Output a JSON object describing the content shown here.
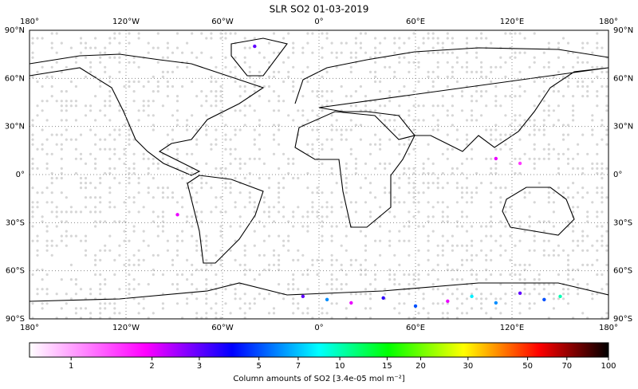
{
  "map": {
    "title": "SLR SO2 01-03-2019",
    "lon_ticks": [
      {
        "value": -180,
        "label": "180°"
      },
      {
        "value": -120,
        "label": "120°W"
      },
      {
        "value": -60,
        "label": "60°W"
      },
      {
        "value": 0,
        "label": "0°"
      },
      {
        "value": 60,
        "label": "60°E"
      },
      {
        "value": 120,
        "label": "120°E"
      },
      {
        "value": 180,
        "label": "180°"
      }
    ],
    "lat_ticks": [
      {
        "value": 90,
        "label": "90°N"
      },
      {
        "value": 60,
        "label": "60°N"
      },
      {
        "value": 30,
        "label": "30°N"
      },
      {
        "value": 0,
        "label": "0°"
      },
      {
        "value": -30,
        "label": "30°S"
      },
      {
        "value": -60,
        "label": "60°S"
      },
      {
        "value": -90,
        "label": "90°S"
      }
    ],
    "grid": true,
    "points": [
      {
        "lon": -40,
        "lat": 80,
        "value": 3
      },
      {
        "lon": -88,
        "lat": -25,
        "value": 2
      },
      {
        "lon": 110,
        "lat": 10,
        "value": 2
      },
      {
        "lon": 125,
        "lat": 7,
        "value": 1.5
      },
      {
        "lon": -10,
        "lat": -76,
        "value": 3
      },
      {
        "lon": 5,
        "lat": -78,
        "value": 6
      },
      {
        "lon": 20,
        "lat": -80,
        "value": 2
      },
      {
        "lon": 40,
        "lat": -77,
        "value": 3.5
      },
      {
        "lon": 60,
        "lat": -82,
        "value": 5
      },
      {
        "lon": 80,
        "lat": -79,
        "value": 2
      },
      {
        "lon": 95,
        "lat": -76,
        "value": 8
      },
      {
        "lon": 110,
        "lat": -80,
        "value": 6
      },
      {
        "lon": 125,
        "lat": -74,
        "value": 3
      },
      {
        "lon": 140,
        "lat": -78,
        "value": 5
      },
      {
        "lon": 150,
        "lat": -76,
        "value": 10
      }
    ],
    "colorbar": {
      "label": "Column amounts of SO2 [3.4e-05 mol m⁻²]",
      "log": true,
      "clim": [
        0.7,
        100
      ],
      "ticks": [
        1,
        2,
        3,
        5,
        7,
        10,
        15,
        20,
        30,
        50,
        70,
        100
      ]
    }
  }
}
